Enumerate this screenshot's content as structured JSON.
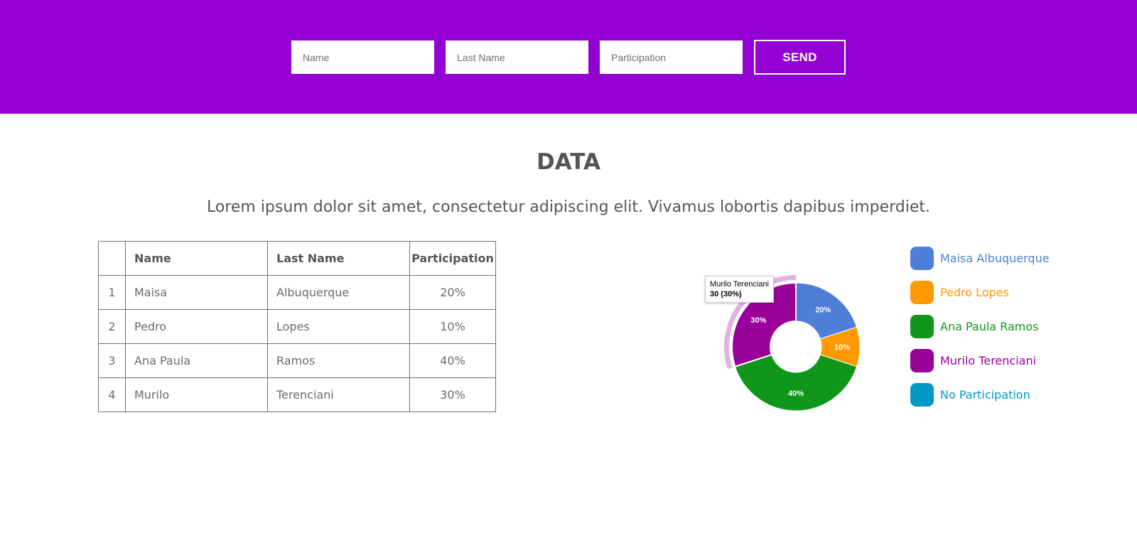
{
  "form": {
    "name_placeholder": "Name",
    "last_name_placeholder": "Last Name",
    "participation_placeholder": "Participation",
    "send_label": "SEND"
  },
  "section": {
    "title": "DATA",
    "subtitle": "Lorem ipsum dolor sit amet, consectetur adipiscing elit. Vivamus lobortis dapibus imperdiet."
  },
  "table": {
    "headers": [
      "",
      "Name",
      "Last Name",
      "Participation"
    ],
    "rows": [
      [
        "1",
        "Maisa",
        "Albuquerque",
        "20%"
      ],
      [
        "2",
        "Pedro",
        "Lopes",
        "10%"
      ],
      [
        "3",
        "Ana Paula",
        "Ramos",
        "40%"
      ],
      [
        "4",
        "Murilo",
        "Terenciani",
        "30%"
      ]
    ]
  },
  "legend": [
    {
      "label": "Maisa Albuquerque",
      "color": "#4e7fd8"
    },
    {
      "label": "Pedro Lopes",
      "color": "#ff9900"
    },
    {
      "label": "Ana Paula Ramos",
      "color": "#109618"
    },
    {
      "label": "Murilo Terenciani",
      "color": "#990099"
    },
    {
      "label": "No Participation",
      "color": "#0099c6"
    }
  ],
  "tooltip": {
    "name": "Murilo Terenciani",
    "value": "30 (30%)"
  },
  "chart_data": {
    "type": "pie",
    "donut": true,
    "categories": [
      "Maisa Albuquerque",
      "Pedro Lopes",
      "Ana Paula Ramos",
      "Murilo Terenciani",
      "No Participation"
    ],
    "values": [
      20,
      10,
      40,
      30,
      0
    ],
    "labels": [
      "20%",
      "10%",
      "40%",
      "30%",
      ""
    ],
    "colors": [
      "#4e7fd8",
      "#ff9900",
      "#109618",
      "#990099",
      "#0099c6"
    ],
    "highlighted": "Murilo Terenciani",
    "legend_position": "right"
  },
  "colors": {
    "header_bg": "#9400d3",
    "text": "#555555"
  }
}
